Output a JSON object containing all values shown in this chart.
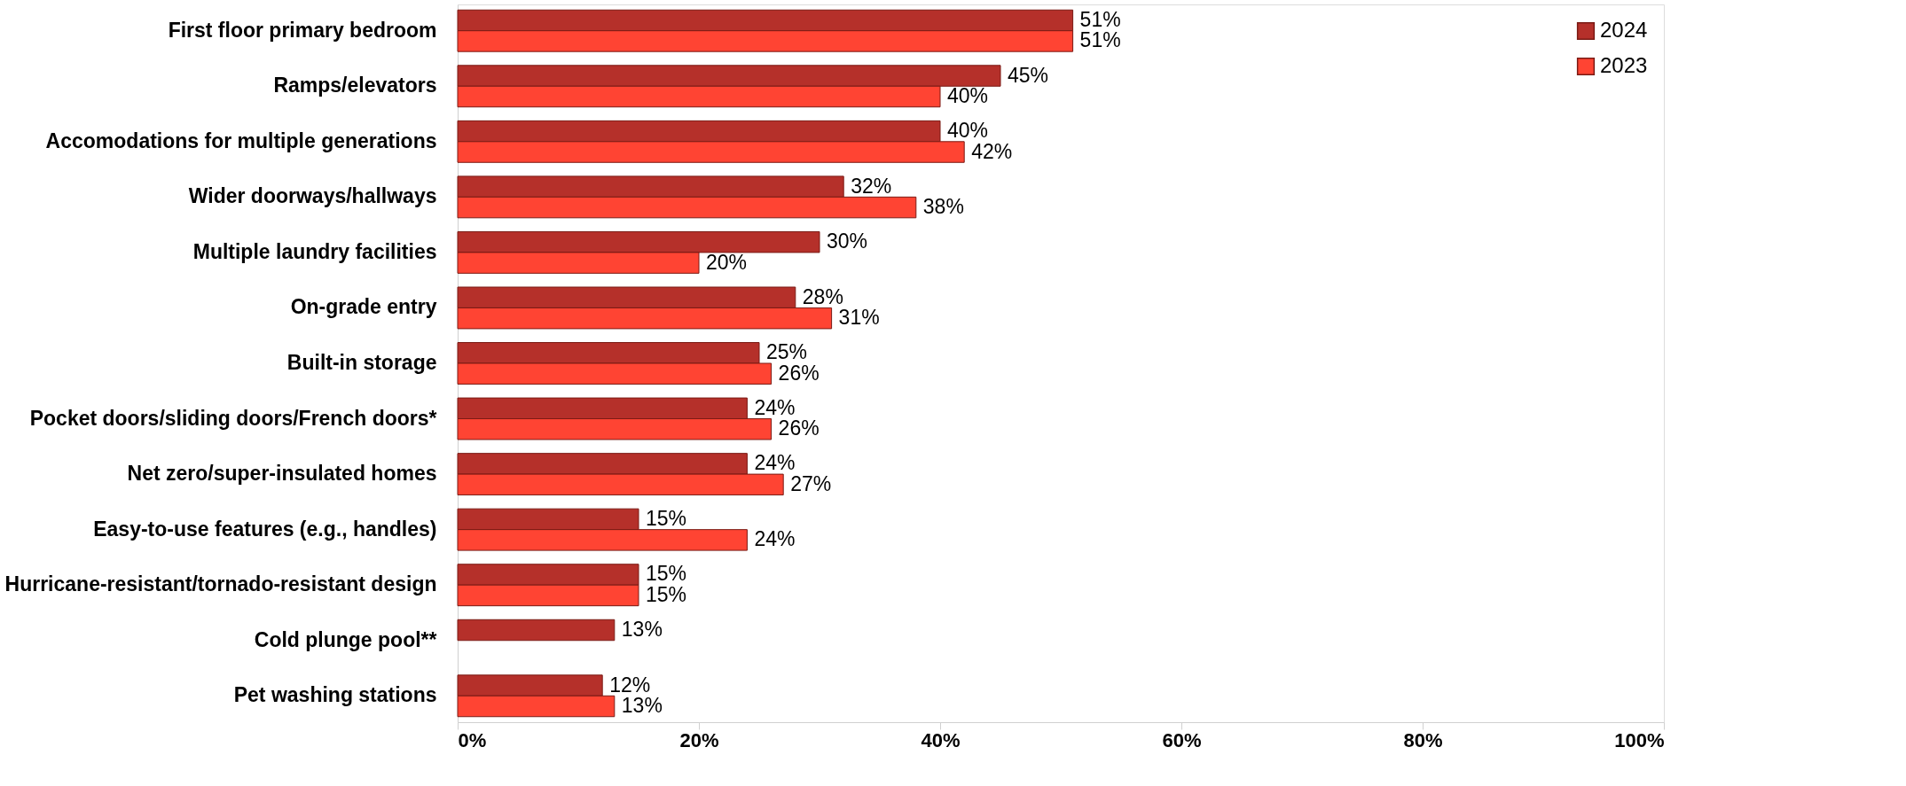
{
  "chart_data": {
    "type": "bar",
    "orientation": "horizontal",
    "categories": [
      "First floor primary bedroom",
      "Ramps/elevators",
      "Accomodations for multiple generations",
      "Wider doorways/hallways",
      "Multiple laundry facilities",
      "On-grade entry",
      "Built-in storage",
      "Pocket doors/sliding doors/French doors*",
      "Net zero/super-insulated homes",
      "Easy-to-use features (e.g., handles)",
      "Hurricane-resistant/tornado-resistant design",
      "Cold plunge pool**",
      "Pet washing stations"
    ],
    "series": [
      {
        "name": "2024",
        "color": "#b5302a",
        "values": [
          51,
          45,
          40,
          32,
          30,
          28,
          25,
          24,
          24,
          15,
          15,
          13,
          12
        ],
        "value_labels": [
          "51%",
          "45%",
          "40%",
          "32%",
          "30%",
          "28%",
          "25%",
          "24%",
          "24%",
          "15%",
          "15%",
          "13%",
          "12%"
        ]
      },
      {
        "name": "2023",
        "color": "#ff4433",
        "values": [
          51,
          40,
          42,
          38,
          20,
          31,
          26,
          26,
          27,
          24,
          15,
          null,
          13
        ],
        "value_labels": [
          "51%",
          "40%",
          "42%",
          "38%",
          "20%",
          "31%",
          "26%",
          "26%",
          "27%",
          "24%",
          "15%",
          null,
          "13%"
        ]
      }
    ],
    "xlim": [
      0,
      100
    ],
    "xticks": [
      {
        "value": 0,
        "label": "0%"
      },
      {
        "value": 20,
        "label": "20%"
      },
      {
        "value": 40,
        "label": "40%"
      },
      {
        "value": 60,
        "label": "60%"
      },
      {
        "value": 80,
        "label": "80%"
      },
      {
        "value": 100,
        "label": "100%"
      }
    ],
    "legend": "top right",
    "grid": false
  }
}
